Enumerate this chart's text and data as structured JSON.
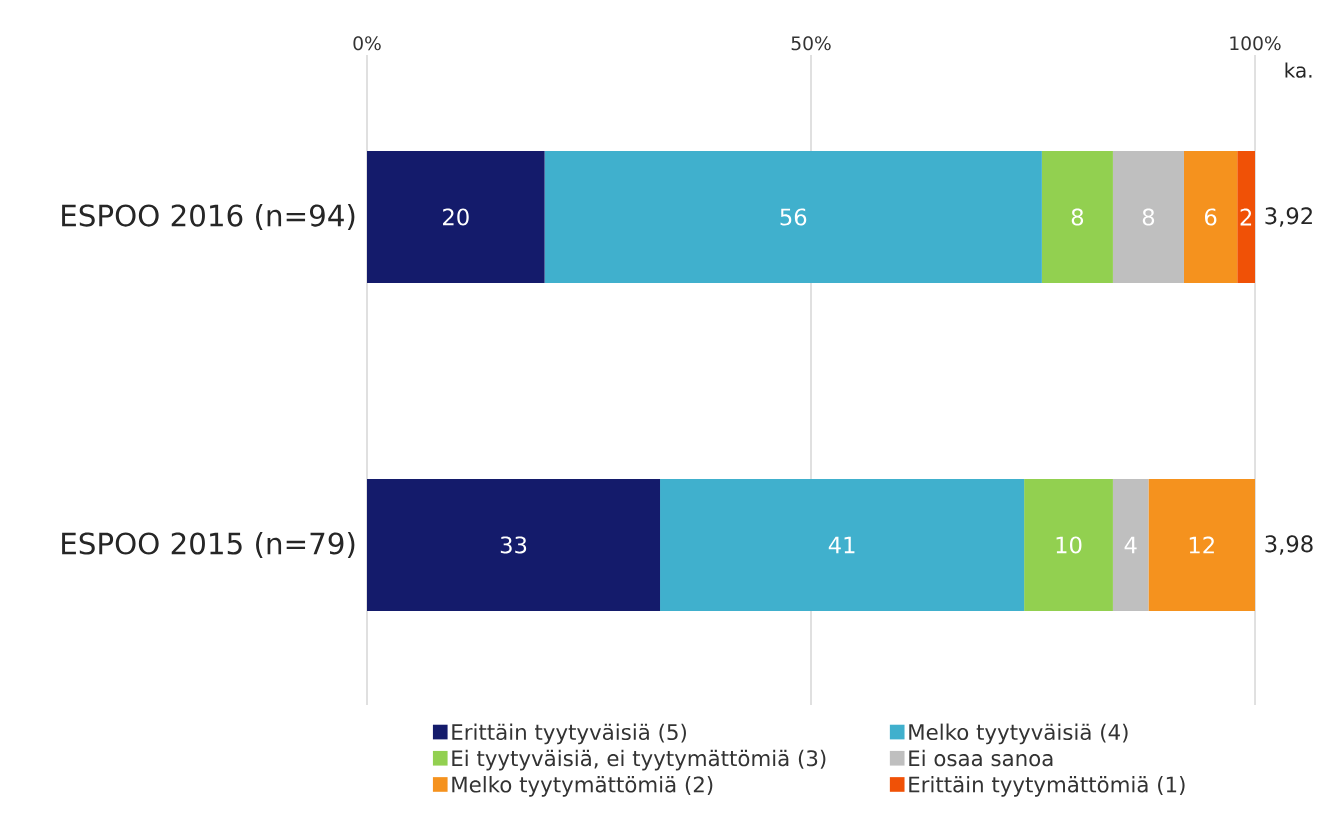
{
  "chart_data": {
    "type": "bar",
    "orientation": "horizontal",
    "stacked": true,
    "categories": [
      "ESPOO 2016 (n=94)",
      "ESPOO 2015 (n=79)"
    ],
    "series": [
      {
        "name": "Erittäin tyytyväisiä (5)",
        "color": "#141b6b",
        "values": [
          20,
          33
        ],
        "value_labels": [
          "20",
          "33"
        ]
      },
      {
        "name": "Melko tyytyväisiä (4)",
        "color": "#40b0cd",
        "values": [
          56,
          41
        ],
        "value_labels": [
          "56",
          "41"
        ]
      },
      {
        "name": "Ei tyytyväisiä, ei tyytymättömiä (3)",
        "color": "#92d050",
        "values": [
          8,
          10
        ],
        "value_labels": [
          "8",
          "10"
        ]
      },
      {
        "name": "Ei osaa sanoa",
        "color": "#bfbfbf",
        "values": [
          8,
          4
        ],
        "value_labels": [
          "8",
          "4"
        ]
      },
      {
        "name": "Melko tyytymättömiä (2)",
        "color": "#f5921e",
        "values": [
          6,
          12
        ],
        "value_labels": [
          "6",
          "12"
        ]
      },
      {
        "name": "Erittäin tyytymättömiä (1)",
        "color": "#f05106",
        "values": [
          2,
          0
        ],
        "value_labels": [
          "2",
          null
        ]
      }
    ],
    "xlim": [
      0,
      100
    ],
    "xticks": [
      {
        "value": 0,
        "label": "0%"
      },
      {
        "value": 50,
        "label": "50%"
      },
      {
        "value": 100,
        "label": "100%"
      }
    ],
    "grid": "x",
    "legend": "bottom",
    "annotations": [
      "ka.",
      "3,92",
      "3,98"
    ]
  }
}
